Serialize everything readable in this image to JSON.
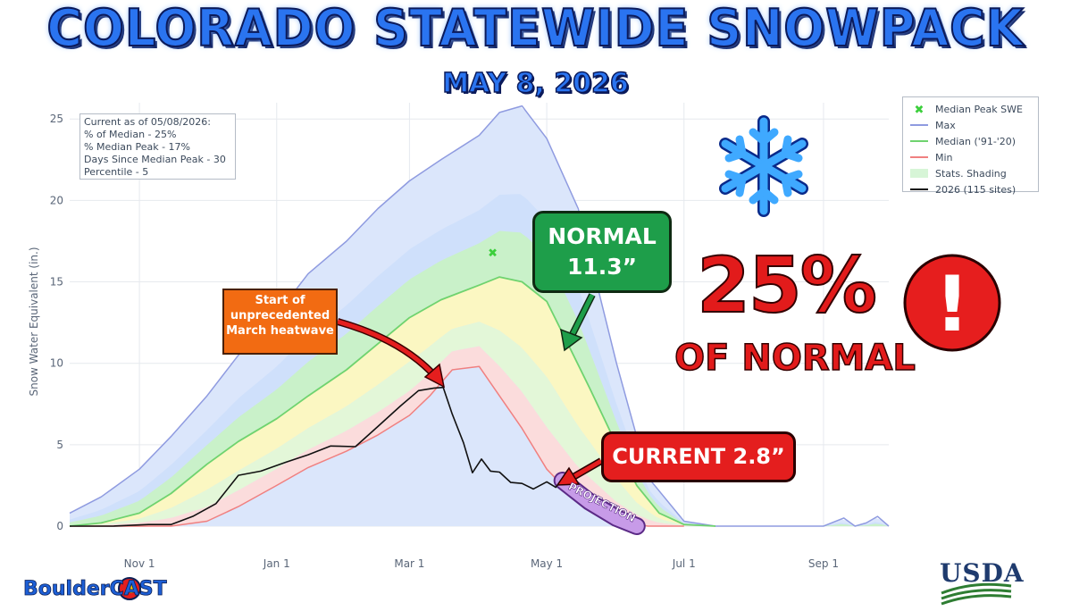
{
  "title": "COLORADO STATEWIDE SNOWPACK",
  "subtitle": "MAY 8, 2026",
  "info_box": {
    "lines": [
      "Current as of 05/08/2026:",
      "% of Median - 25%",
      "% Median Peak - 17%",
      "Days Since Median Peak - 30",
      "Percentile - 5"
    ]
  },
  "annotations": {
    "heatwave": [
      "Start of",
      "unprecedented",
      "March heatwave"
    ],
    "normal": [
      "NORMAL",
      "11.3”"
    ],
    "current": "CURRENT 2.8”",
    "projection": "PROJECTION",
    "big_percent": "25%",
    "of_normal": "OF NORMAL",
    "alert_mark": "!"
  },
  "logos": {
    "left": "BoulderCAST",
    "right": "USDA"
  },
  "colors": {
    "max": "#8f9be0",
    "max_fill": "#dbe6fb",
    "median": "#6fd36f",
    "min": "#f08080",
    "current": "#111111",
    "alert": "#e21b1b",
    "normal_box": "#1e9e4a",
    "heat_box": "#f26b12",
    "snowflake": "#3fa9ff"
  },
  "icons": [
    "snowflake-icon",
    "exclamation-icon",
    "colorado-flag-icon",
    "usda-logo-icon"
  ],
  "chart_data": {
    "type": "area",
    "ylabel": "Snow Water Equivalent (in.)",
    "xlim": [
      "2025-10-01",
      "2026-09-30"
    ],
    "ylim": [
      0,
      26
    ],
    "y_ticks": [
      0,
      5,
      10,
      15,
      20,
      25
    ],
    "x_ticks": [
      {
        "date": "2025-11-01",
        "label": "Nov 1"
      },
      {
        "date": "2026-01-01",
        "label": "Jan 1"
      },
      {
        "date": "2026-03-01",
        "label": "Mar 1"
      },
      {
        "date": "2026-05-01",
        "label": "May 1"
      },
      {
        "date": "2026-07-01",
        "label": "Jul 1"
      },
      {
        "date": "2026-09-01",
        "label": "Sep 1"
      }
    ],
    "grid": true,
    "legend_placement": "top-right",
    "legend": [
      "Median Peak SWE",
      "Max",
      "Median ('91-'20)",
      "Min",
      "Stats. Shading",
      "2026 (115 sites)"
    ],
    "median_peak": {
      "date": "2026-04-07",
      "value": 16.8
    },
    "series": [
      {
        "name": "Max",
        "x": [
          "2025-10-01",
          "2025-10-15",
          "2025-11-01",
          "2025-11-15",
          "2025-12-01",
          "2025-12-15",
          "2026-01-01",
          "2026-01-15",
          "2026-02-01",
          "2026-02-15",
          "2026-03-01",
          "2026-03-15",
          "2026-04-01",
          "2026-04-10",
          "2026-04-20",
          "2026-05-01",
          "2026-05-15",
          "2026-06-01",
          "2026-06-15",
          "2026-07-01",
          "2026-07-15",
          "2026-08-01",
          "2026-08-15",
          "2026-09-01",
          "2026-09-10",
          "2026-09-15",
          "2026-09-20",
          "2026-09-25",
          "2026-09-30"
        ],
        "values": [
          0.8,
          1.8,
          3.5,
          5.5,
          8.0,
          10.5,
          13.0,
          15.5,
          17.5,
          19.5,
          21.2,
          22.5,
          24.0,
          25.4,
          25.8,
          23.8,
          19.5,
          10.0,
          3.0,
          0.3,
          0,
          0,
          0,
          0,
          0.5,
          0,
          0.2,
          0.6,
          0
        ]
      },
      {
        "name": "Median ('91-'20)",
        "x": [
          "2025-10-01",
          "2025-10-15",
          "2025-11-01",
          "2025-11-15",
          "2025-12-01",
          "2025-12-15",
          "2026-01-01",
          "2026-01-15",
          "2026-02-01",
          "2026-02-15",
          "2026-03-01",
          "2026-03-15",
          "2026-04-01",
          "2026-04-10",
          "2026-04-20",
          "2026-05-01",
          "2026-05-10",
          "2026-05-20",
          "2026-06-01",
          "2026-06-10",
          "2026-06-20",
          "2026-07-01",
          "2026-07-15"
        ],
        "values": [
          0,
          0.2,
          0.8,
          2.0,
          3.8,
          5.2,
          6.6,
          8.0,
          9.6,
          11.2,
          12.8,
          13.9,
          14.8,
          15.3,
          15.0,
          13.8,
          11.3,
          8.5,
          5.0,
          2.5,
          0.8,
          0.1,
          0
        ]
      },
      {
        "name": "Min",
        "x": [
          "2025-10-01",
          "2025-11-15",
          "2025-12-01",
          "2025-12-15",
          "2026-01-01",
          "2026-01-15",
          "2026-02-01",
          "2026-02-15",
          "2026-03-01",
          "2026-03-10",
          "2026-03-20",
          "2026-04-01",
          "2026-04-10",
          "2026-04-20",
          "2026-05-01",
          "2026-05-15",
          "2026-06-01",
          "2026-06-15",
          "2026-07-01"
        ],
        "values": [
          0,
          0,
          0.3,
          1.2,
          2.5,
          3.6,
          4.6,
          5.6,
          6.8,
          8.0,
          9.6,
          9.8,
          8.0,
          6.0,
          3.5,
          1.5,
          0.3,
          0,
          0
        ]
      },
      {
        "name": "2026 (115 sites)",
        "x": [
          "2025-10-01",
          "2025-10-20",
          "2025-11-05",
          "2025-11-15",
          "2025-11-25",
          "2025-12-05",
          "2025-12-15",
          "2025-12-25",
          "2026-01-05",
          "2026-01-15",
          "2026-01-25",
          "2026-02-05",
          "2026-02-15",
          "2026-02-25",
          "2026-03-05",
          "2026-03-12",
          "2026-03-16",
          "2026-03-20",
          "2026-03-25",
          "2026-03-29",
          "2026-04-02",
          "2026-04-06",
          "2026-04-10",
          "2026-04-15",
          "2026-04-20",
          "2026-04-25",
          "2026-05-01",
          "2026-05-05",
          "2026-05-08"
        ],
        "values": [
          0,
          0,
          0.1,
          0.1,
          0.5,
          1.5,
          3.0,
          3.5,
          3.8,
          4.5,
          4.8,
          5.0,
          6.0,
          7.5,
          8.2,
          8.6,
          8.4,
          7.0,
          5.0,
          3.4,
          4.0,
          3.5,
          3.2,
          2.8,
          2.5,
          2.4,
          2.6,
          2.5,
          2.8
        ]
      },
      {
        "name": "Projection",
        "x": [
          "2026-05-08",
          "2026-05-20",
          "2026-06-01",
          "2026-06-10"
        ],
        "values": [
          2.8,
          1.5,
          0.5,
          0
        ]
      }
    ]
  }
}
